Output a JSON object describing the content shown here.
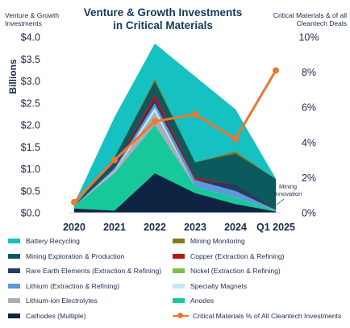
{
  "chart_data": {
    "type": "area",
    "title_lines": [
      "Venture & Growth Investments",
      "in Critical Materials"
    ],
    "y_left_label": "Venture & Growth Investments",
    "y_left_unit": "Billions",
    "y_right_label": "Critical Materials & of all Cleantech Deals",
    "categories": [
      "2020",
      "2021",
      "2022",
      "2023",
      "2024",
      "Q1 2025"
    ],
    "y_left_ticks": [
      "$0.0",
      "$0.5",
      "$1.0",
      "$1.5",
      "$2.0",
      "$2.5",
      "$3.0",
      "$3.5",
      "$4.0"
    ],
    "y_left_range": [
      0,
      4
    ],
    "y_right_ticks": [
      "0%",
      "2%",
      "4%",
      "6%",
      "8%",
      "10%"
    ],
    "y_right_range": [
      0,
      10
    ],
    "annotation": "Mining Innovation",
    "series": [
      {
        "name": "Cathodes (Multiple)",
        "color": "#0f2342",
        "values": [
          0.1,
          0.05,
          0.9,
          0.45,
          0.2,
          0.03
        ]
      },
      {
        "name": "Anodes",
        "color": "#17c99a",
        "values": [
          0.05,
          0.85,
          1.1,
          0.15,
          0.15,
          0.02
        ]
      },
      {
        "name": "Lithium-ion Electrolytes",
        "color": "#a8aeb6",
        "values": [
          0.0,
          0.05,
          0.3,
          0.0,
          0.0,
          0.0
        ]
      },
      {
        "name": "Specialty Magnets",
        "color": "#bfe9f4",
        "values": [
          0.0,
          0.02,
          0.1,
          0.0,
          0.0,
          0.0
        ]
      },
      {
        "name": "Lithium (Extraction & Refining)",
        "color": "#5b9bd9",
        "values": [
          0.0,
          0.05,
          0.1,
          0.15,
          0.15,
          0.02
        ]
      },
      {
        "name": "Nickel (Extraction & Refining)",
        "color": "#7bbf45",
        "values": [
          0.0,
          0.0,
          0.0,
          0.0,
          0.0,
          0.0
        ]
      },
      {
        "name": "Rare Earth Elements (Extraction & Refining)",
        "color": "#253a66",
        "values": [
          0.0,
          0.05,
          0.1,
          0.0,
          0.15,
          0.0
        ]
      },
      {
        "name": "Copper (Extraction & Refining)",
        "color": "#b8141a",
        "values": [
          0.0,
          0.0,
          0.1,
          0.05,
          0.0,
          0.0
        ]
      },
      {
        "name": "Mining Exploration & Production",
        "color": "#0b5a5e",
        "values": [
          0.0,
          0.2,
          0.3,
          0.35,
          0.7,
          0.7
        ]
      },
      {
        "name": "Mining Monitoring",
        "color": "#8a7a1a",
        "values": [
          0.0,
          0.0,
          0.05,
          0.0,
          0.05,
          0.0
        ]
      },
      {
        "name": "Battery Recycling",
        "color": "#15c1c1",
        "values": [
          0.05,
          0.9,
          0.8,
          1.95,
          0.95,
          0.0
        ]
      }
    ],
    "line_series": {
      "name": "Critical Materials % of All Cleantech Investments",
      "color": "#f07530",
      "values": [
        0.6,
        3.0,
        5.2,
        5.6,
        4.2,
        8.1
      ]
    },
    "grid": false,
    "legend_position": "bottom"
  },
  "legend": {
    "left": [
      "Battery Recycling",
      "Mining Exploration & Production",
      "Rare Earth Elements (Extraction & Refining)",
      "Lithium (Extraction & Refining)",
      "Lithium-ion Electrolytes",
      "Cathodes (Multiple)"
    ],
    "right": [
      "Mining Monitoring",
      "Copper (Extraction & Refining)",
      "Nickel (Extraction & Refining)",
      "Specialty Magnets",
      "Anodes",
      "Critical Materials % of All Cleantech Investments"
    ]
  }
}
